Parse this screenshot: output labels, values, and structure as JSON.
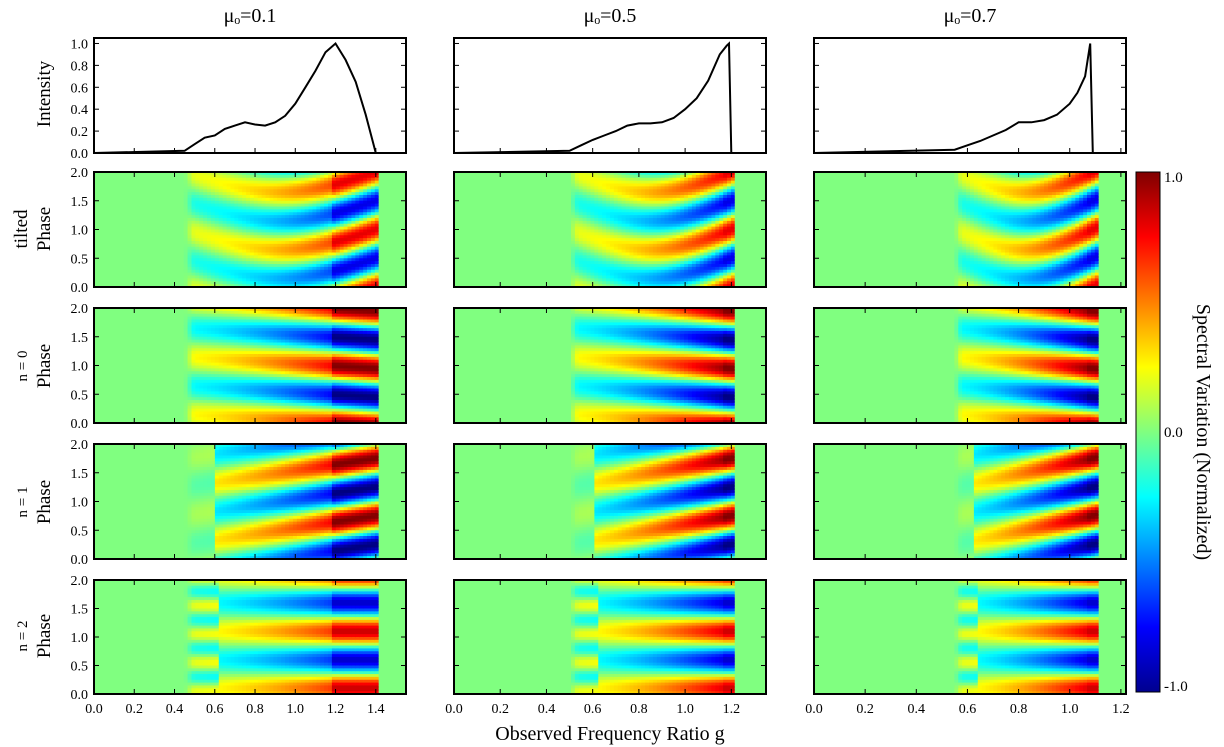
{
  "figure": {
    "column_titles": [
      "μₒ=0.1",
      "μₒ=0.5",
      "μₒ=0.7"
    ],
    "xlabel": "Observed Frequency Ratio g",
    "intensity_ylabel": "Intensity",
    "phase_ylabel": "Phase",
    "row_labels": [
      "tilted",
      "n = 0",
      "n = 1",
      "n = 2"
    ],
    "colorbar": {
      "label": "Spectral Variation (Normalized)",
      "ticks": [
        "1.0",
        "0.0",
        "-1.0"
      ],
      "colormap": "jet"
    },
    "intensity_yticks": [
      "0.0",
      "0.2",
      "0.4",
      "0.6",
      "0.8",
      "1.0"
    ],
    "phase_yticks": [
      "0.0",
      "0.5",
      "1.0",
      "1.5",
      "2.0"
    ],
    "xticks_col1": [
      "0.0",
      "0.2",
      "0.4",
      "0.6",
      "0.8",
      "1.0",
      "1.2",
      "1.4"
    ],
    "xticks_col23": [
      "0.0",
      "0.2",
      "0.4",
      "0.6",
      "0.8",
      "1.0",
      "1.2"
    ]
  },
  "chart_data": [
    {
      "type": "line",
      "panel": "intensity",
      "column": "μo=0.1",
      "xlim": [
        0,
        1.55
      ],
      "ylim": [
        0,
        1.05
      ],
      "x": [
        0.0,
        0.45,
        0.5,
        0.55,
        0.6,
        0.65,
        0.7,
        0.75,
        0.8,
        0.85,
        0.9,
        0.95,
        1.0,
        1.05,
        1.1,
        1.15,
        1.2,
        1.25,
        1.3,
        1.35,
        1.4,
        1.55
      ],
      "y": [
        0.0,
        0.02,
        0.08,
        0.14,
        0.16,
        0.22,
        0.25,
        0.28,
        0.26,
        0.25,
        0.28,
        0.34,
        0.45,
        0.6,
        0.75,
        0.92,
        1.0,
        0.85,
        0.65,
        0.35,
        0.0,
        0.0
      ]
    },
    {
      "type": "line",
      "panel": "intensity",
      "column": "μo=0.5",
      "xlim": [
        0,
        1.35
      ],
      "ylim": [
        0,
        1.05
      ],
      "x": [
        0.0,
        0.5,
        0.55,
        0.6,
        0.65,
        0.7,
        0.75,
        0.8,
        0.85,
        0.9,
        0.95,
        1.0,
        1.05,
        1.1,
        1.15,
        1.18,
        1.19,
        1.2,
        1.35
      ],
      "y": [
        0.0,
        0.02,
        0.07,
        0.12,
        0.16,
        0.2,
        0.25,
        0.27,
        0.27,
        0.28,
        0.32,
        0.4,
        0.5,
        0.66,
        0.9,
        0.98,
        1.0,
        0.0,
        0.0
      ]
    },
    {
      "type": "line",
      "panel": "intensity",
      "column": "μo=0.7",
      "xlim": [
        0,
        1.22
      ],
      "ylim": [
        0,
        1.05
      ],
      "x": [
        0.0,
        0.55,
        0.6,
        0.65,
        0.7,
        0.75,
        0.8,
        0.85,
        0.9,
        0.95,
        1.0,
        1.03,
        1.06,
        1.08,
        1.09,
        1.22
      ],
      "y": [
        0.0,
        0.03,
        0.07,
        0.11,
        0.16,
        0.21,
        0.28,
        0.28,
        0.3,
        0.35,
        0.45,
        0.55,
        0.7,
        1.0,
        0.0,
        0.0
      ]
    },
    {
      "type": "heatmap",
      "panel": "phase maps",
      "rows": [
        "tilted",
        "n = 0",
        "n = 1",
        "n = 2"
      ],
      "columns": [
        "μo=0.1",
        "μo=0.5",
        "μo=0.7"
      ],
      "ylim": [
        0,
        2.0
      ],
      "clim": [
        -1.0,
        1.0
      ],
      "colormap": "jet",
      "xlims": [
        [
          0,
          1.55
        ],
        [
          0,
          1.35
        ],
        [
          0,
          1.22
        ]
      ],
      "emission_ranges": [
        [
          0.45,
          1.4
        ],
        [
          0.5,
          1.2
        ],
        [
          0.55,
          1.09
        ]
      ],
      "peak_g": [
        1.2,
        1.19,
        1.08
      ]
    }
  ]
}
